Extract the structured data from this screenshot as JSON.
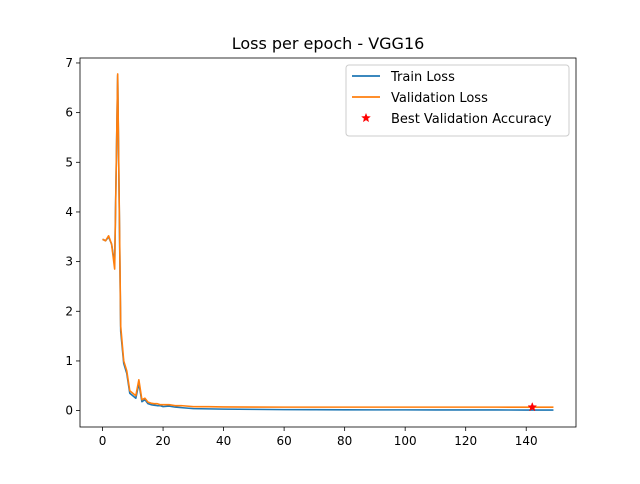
{
  "chart_data": {
    "type": "line",
    "title": "Loss per epoch - VGG16",
    "xlabel": "",
    "ylabel": "",
    "xlim": [
      -7.45,
      156.45
    ],
    "ylim": [
      -0.33,
      7.1
    ],
    "x_ticks": [
      0,
      20,
      40,
      60,
      80,
      100,
      120,
      140
    ],
    "y_ticks": [
      0,
      1,
      2,
      3,
      4,
      5,
      6,
      7
    ],
    "grid": false,
    "legend_position": "top-right",
    "series": [
      {
        "name": "Train Loss",
        "color": "#1f77b4",
        "points": [
          [
            0,
            3.45
          ],
          [
            1,
            3.42
          ],
          [
            2,
            3.5
          ],
          [
            3,
            3.35
          ],
          [
            4,
            2.95
          ],
          [
            5,
            6.75
          ],
          [
            6,
            1.6
          ],
          [
            7,
            0.95
          ],
          [
            8,
            0.75
          ],
          [
            9,
            0.35
          ],
          [
            10,
            0.3
          ],
          [
            11,
            0.25
          ],
          [
            12,
            0.55
          ],
          [
            13,
            0.18
          ],
          [
            14,
            0.22
          ],
          [
            15,
            0.14
          ],
          [
            16,
            0.12
          ],
          [
            17,
            0.11
          ],
          [
            18,
            0.1
          ],
          [
            19,
            0.1
          ],
          [
            20,
            0.08
          ],
          [
            22,
            0.09
          ],
          [
            24,
            0.07
          ],
          [
            26,
            0.06
          ],
          [
            28,
            0.05
          ],
          [
            30,
            0.04
          ],
          [
            35,
            0.035
          ],
          [
            40,
            0.03
          ],
          [
            50,
            0.025
          ],
          [
            60,
            0.02
          ],
          [
            70,
            0.018
          ],
          [
            80,
            0.016
          ],
          [
            90,
            0.015
          ],
          [
            100,
            0.015
          ],
          [
            110,
            0.014
          ],
          [
            120,
            0.014
          ],
          [
            130,
            0.013
          ],
          [
            140,
            0.012
          ],
          [
            149,
            0.012
          ]
        ]
      },
      {
        "name": "Validation Loss",
        "color": "#ff7f0e",
        "points": [
          [
            0,
            3.45
          ],
          [
            1,
            3.42
          ],
          [
            2,
            3.52
          ],
          [
            3,
            3.35
          ],
          [
            4,
            2.85
          ],
          [
            5,
            6.78
          ],
          [
            6,
            1.7
          ],
          [
            7,
            1.0
          ],
          [
            8,
            0.8
          ],
          [
            9,
            0.4
          ],
          [
            10,
            0.35
          ],
          [
            11,
            0.3
          ],
          [
            12,
            0.62
          ],
          [
            13,
            0.22
          ],
          [
            14,
            0.25
          ],
          [
            15,
            0.17
          ],
          [
            16,
            0.15
          ],
          [
            17,
            0.14
          ],
          [
            18,
            0.14
          ],
          [
            19,
            0.12
          ],
          [
            20,
            0.12
          ],
          [
            22,
            0.12
          ],
          [
            24,
            0.1
          ],
          [
            26,
            0.1
          ],
          [
            28,
            0.09
          ],
          [
            30,
            0.08
          ],
          [
            35,
            0.08
          ],
          [
            40,
            0.075
          ],
          [
            50,
            0.072
          ],
          [
            60,
            0.07
          ],
          [
            70,
            0.07
          ],
          [
            80,
            0.07
          ],
          [
            90,
            0.07
          ],
          [
            100,
            0.07
          ],
          [
            110,
            0.07
          ],
          [
            120,
            0.07
          ],
          [
            130,
            0.07
          ],
          [
            140,
            0.068
          ],
          [
            149,
            0.068
          ]
        ]
      }
    ],
    "markers": [
      {
        "name": "Best Validation Accuracy",
        "color": "#ff0000",
        "marker": "star",
        "x": 142,
        "y": 0.07
      }
    ]
  }
}
